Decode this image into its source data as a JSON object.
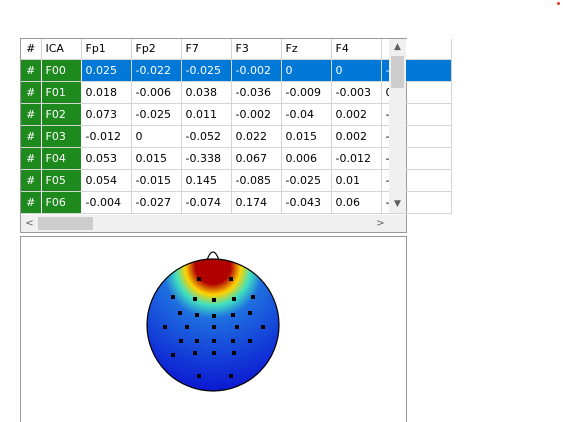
{
  "grid": {
    "headers": [
      "#",
      "ICA",
      "Fp1",
      "Fp2",
      "F7",
      "F3",
      "Fz",
      "F4",
      ""
    ],
    "rows": [
      {
        "hash": "#",
        "ica": "F00",
        "values": [
          "0.025",
          "-0.022",
          "-0.025",
          "-0.002",
          "0",
          "0",
          "-"
        ],
        "selected": true
      },
      {
        "hash": "#",
        "ica": "F01",
        "values": [
          "0.018",
          "-0.006",
          "0.038",
          "-0.036",
          "-0.009",
          "-0.003",
          "0"
        ],
        "selected": false
      },
      {
        "hash": "#",
        "ica": "F02",
        "values": [
          "0.073",
          "-0.025",
          "0.011",
          "-0.002",
          "-0.04",
          "0.002",
          "-"
        ],
        "selected": false
      },
      {
        "hash": "#",
        "ica": "F03",
        "values": [
          "-0.012",
          "0",
          "-0.052",
          "0.022",
          "0.015",
          "0.002",
          "-"
        ],
        "selected": false
      },
      {
        "hash": "#",
        "ica": "F04",
        "values": [
          "0.053",
          "0.015",
          "-0.338",
          "0.067",
          "0.006",
          "-0.012",
          "-"
        ],
        "selected": false
      },
      {
        "hash": "#",
        "ica": "F05",
        "values": [
          "0.054",
          "-0.015",
          "0.145",
          "-0.085",
          "-0.025",
          "0.01",
          "-"
        ],
        "selected": false
      },
      {
        "hash": "#",
        "ica": "F06",
        "values": [
          "-0.004",
          "-0.027",
          "-0.074",
          "0.174",
          "-0.043",
          "0.06",
          "-"
        ],
        "selected": false
      }
    ],
    "scroll": {
      "up": "▲",
      "down": "▼",
      "left": "<",
      "right": ">"
    }
  },
  "topomap": {
    "colors": {
      "hot": "#b00000",
      "warm": "#ffd200",
      "mid": "#40e0c0",
      "cool": "#1e6fe0",
      "cold": "#0a10d0"
    },
    "electrode_color": "#000000"
  },
  "accent": {
    "selection": "#0078d7",
    "row_header": "#1e8a1e"
  }
}
